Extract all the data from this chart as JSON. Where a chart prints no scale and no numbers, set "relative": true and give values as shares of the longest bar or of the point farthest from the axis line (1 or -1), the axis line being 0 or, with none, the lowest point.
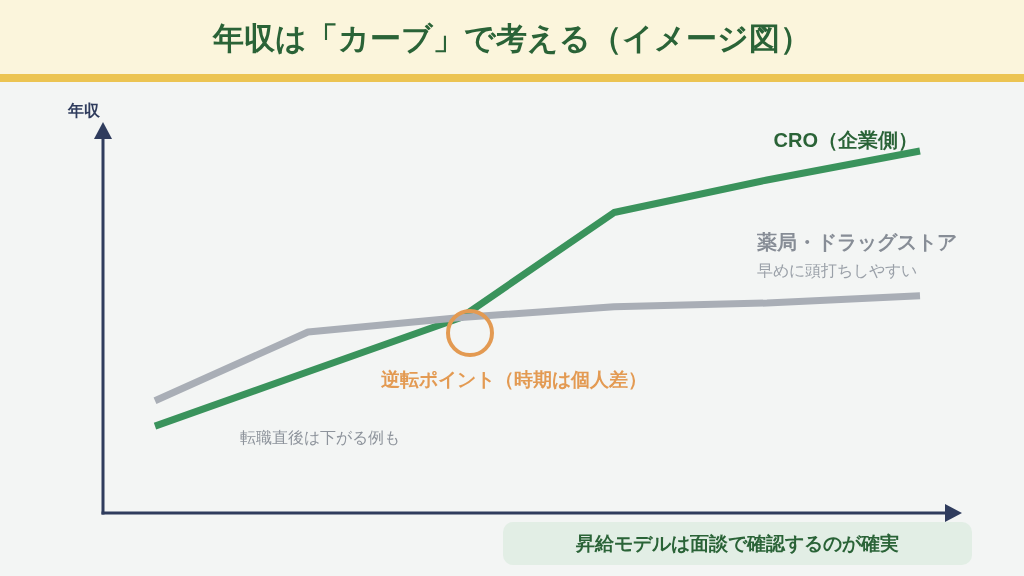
{
  "chart_data": {
    "type": "line",
    "title": "年収は「カーブ」で考える（イメージ図）",
    "ylabel": "年収",
    "relative": true,
    "categories": [
      null,
      null,
      null,
      null,
      null,
      null
    ],
    "series": [
      {
        "name": "CRO（企業側）",
        "color": "#3a935c",
        "values": [
          0.24,
          0.39,
          0.54,
          0.83,
          0.92,
          1
        ]
      },
      {
        "name": "薬局・ドラッグストア",
        "color": "#a9aeb6",
        "values": [
          0.31,
          0.5,
          0.54,
          0.57,
          0.58,
          0.6
        ]
      }
    ],
    "annotations": [
      "早めに頭打ちしやすい",
      "逆転ポイント（時期は個人差）",
      "転職直後は下がる例も",
      "昇給モデルは面談で確認するのが確実"
    ]
  }
}
